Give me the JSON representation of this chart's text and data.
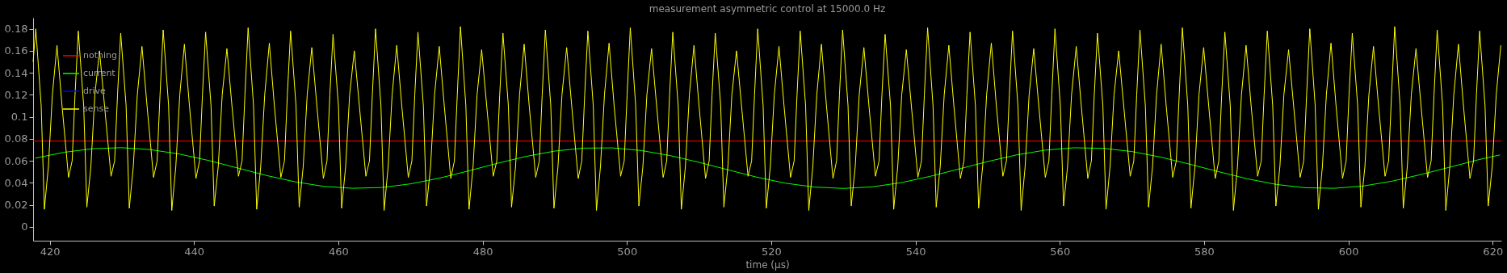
{
  "chart_data": {
    "type": "line",
    "title": "measurement asymmetric control at 15000.0 Hz",
    "xlabel": "time (µs)",
    "xlim": [
      417.7,
      621.2
    ],
    "ylim": [
      -0.0125,
      0.19
    ],
    "xticks": [
      420,
      440,
      460,
      480,
      500,
      520,
      540,
      560,
      580,
      600,
      620
    ],
    "yticks": [
      0,
      0.02,
      0.04,
      0.06,
      0.08,
      0.1,
      0.12,
      0.14,
      0.16,
      0.18
    ],
    "legend": "top left",
    "line_style": "solid",
    "series": [
      {
        "name": "nothing",
        "color": "#ff0000",
        "x": [
          417.7,
          621.2
        ],
        "values": [
          0.078,
          0.078
        ]
      },
      {
        "name": "current",
        "color": "#00ff00",
        "x": [
          418,
          422,
          426,
          430,
          434,
          438,
          442,
          446,
          450,
          454,
          458,
          462,
          466,
          470,
          474,
          478,
          482,
          486,
          490,
          494,
          498,
          502,
          506,
          510,
          514,
          518,
          522,
          526,
          530,
          534,
          538,
          542,
          546,
          550,
          554,
          558,
          562,
          566,
          570,
          574,
          578,
          582,
          586,
          590,
          594,
          598,
          602,
          606,
          610,
          614,
          618,
          621
        ],
        "values": [
          0.0625,
          0.0678,
          0.0711,
          0.072,
          0.0702,
          0.0662,
          0.0604,
          0.0536,
          0.0468,
          0.041,
          0.0368,
          0.0351,
          0.0358,
          0.0391,
          0.0443,
          0.0508,
          0.0577,
          0.064,
          0.0689,
          0.0716,
          0.0718,
          0.0694,
          0.0648,
          0.0587,
          0.0519,
          0.0452,
          0.0397,
          0.0362,
          0.035,
          0.0364,
          0.0402,
          0.0459,
          0.0526,
          0.0594,
          0.0654,
          0.0698,
          0.0719,
          0.0714,
          0.0685,
          0.0634,
          0.057,
          0.0502,
          0.0437,
          0.0386,
          0.0356,
          0.0351,
          0.0371,
          0.0415,
          0.0475,
          0.0542,
          0.061,
          0.0654
        ]
      },
      {
        "name": "drive",
        "color": "#0000ff"
      },
      {
        "name": "sense",
        "color": "#ffff00",
        "x": [
          417.7,
          418.07,
          418.82,
          419.26,
          419.82,
          420.37,
          421.01,
          421.71,
          422.61,
          423.11,
          423.51,
          423.96,
          424.71,
          425.15,
          425.71,
          426.26,
          426.9,
          427.6,
          428.5,
          429.0,
          429.4,
          429.84,
          430.59,
          431.03,
          431.59,
          432.14,
          432.79,
          433.49,
          434.39,
          434.89,
          435.29,
          435.73,
          436.48,
          436.92,
          437.48,
          438.03,
          438.67,
          439.37,
          440.27,
          440.77,
          441.17,
          441.61,
          442.36,
          442.8,
          443.36,
          443.91,
          444.56,
          445.26,
          446.16,
          446.66,
          447.06,
          447.5,
          448.25,
          448.69,
          449.25,
          449.8,
          450.44,
          451.14,
          452.04,
          452.54,
          452.94,
          453.39,
          454.14,
          454.58,
          455.14,
          455.69,
          456.33,
          457.03,
          457.93,
          458.43,
          458.83,
          459.27,
          460.02,
          460.46,
          461.02,
          461.57,
          462.22,
          462.92,
          463.82,
          464.32,
          464.72,
          465.16,
          465.91,
          466.35,
          466.91,
          467.46,
          468.1,
          468.8,
          469.7,
          470.2,
          470.6,
          471.04,
          471.79,
          472.23,
          472.79,
          473.34,
          473.99,
          474.69,
          475.59,
          476.09,
          476.49,
          476.93,
          477.68,
          478.12,
          478.68,
          479.23,
          479.87,
          480.57,
          481.47,
          481.97,
          482.37,
          482.82,
          483.57,
          484.01,
          484.57,
          485.12,
          485.76,
          486.46,
          487.36,
          487.86,
          488.26,
          488.7,
          489.45,
          489.89,
          490.45,
          491.0,
          491.65,
          492.35,
          493.25,
          493.75,
          494.15,
          494.59,
          495.34,
          495.78,
          496.34,
          496.89,
          497.53,
          498.23,
          499.13,
          499.63,
          500.03,
          500.47,
          501.22,
          501.66,
          502.22,
          502.77,
          503.42,
          504.12,
          505.02,
          505.52,
          505.92,
          506.36,
          507.11,
          507.55,
          508.11,
          508.66,
          509.3,
          510.0,
          510.9,
          511.4,
          511.8,
          512.25,
          513.0,
          513.44,
          514.0,
          514.55,
          515.19,
          515.89,
          516.79,
          517.29,
          517.69,
          518.13,
          518.88,
          519.32,
          519.88,
          520.43,
          521.08,
          521.78,
          522.68,
          523.18,
          523.58,
          524.02,
          524.77,
          525.21,
          525.77,
          526.32,
          526.96,
          527.66,
          528.56,
          529.06,
          529.46,
          529.9,
          530.65,
          531.09,
          531.65,
          532.2,
          532.85,
          533.55,
          534.45,
          534.95,
          535.35,
          535.79,
          536.54,
          536.98,
          537.54,
          538.09,
          538.73,
          539.43,
          540.33,
          540.83,
          541.23,
          541.68,
          542.43,
          542.87,
          543.43,
          543.98,
          544.62,
          545.32,
          546.22,
          546.72,
          547.12,
          547.56,
          548.31,
          548.75,
          549.31,
          549.86,
          550.51,
          551.21,
          552.11,
          552.61,
          553.01,
          553.45,
          554.2,
          554.64,
          555.2,
          555.75,
          556.39,
          557.09,
          557.99,
          558.49,
          558.89,
          559.33,
          560.08,
          560.52,
          561.08,
          561.63,
          562.28,
          562.98,
          563.88,
          564.38,
          564.78,
          565.22,
          565.97,
          566.41,
          566.97,
          567.52,
          568.16,
          568.86,
          569.76,
          570.26,
          570.66,
          571.11,
          571.86,
          572.3,
          572.86,
          573.41,
          574.05,
          574.75,
          575.65,
          576.15,
          576.55,
          576.99,
          577.74,
          578.18,
          578.74,
          579.29,
          579.94,
          580.64,
          581.54,
          582.04,
          582.44,
          582.88,
          583.63,
          584.07,
          584.63,
          585.18,
          585.82,
          586.52,
          587.42,
          587.92,
          588.32,
          588.76,
          589.51,
          589.95,
          590.51,
          591.06,
          591.71,
          592.41,
          593.31,
          593.81,
          594.21,
          594.65,
          595.4,
          595.84,
          596.4,
          596.95,
          597.59,
          598.29,
          599.19,
          599.69,
          600.09,
          600.54,
          601.29,
          601.73,
          602.29,
          602.84,
          603.48,
          604.18,
          605.08,
          605.58,
          605.98,
          606.42,
          607.17,
          607.61,
          608.17,
          608.72,
          609.37,
          610.07,
          610.97,
          611.47,
          611.87,
          612.31,
          613.06,
          613.5,
          614.06,
          614.61,
          615.25,
          615.95,
          616.85,
          617.35,
          617.75,
          618.19,
          618.94,
          619.38,
          619.94,
          620.49,
          621.13
        ],
        "values": [
          0.15,
          0.18,
          0.11,
          0.016,
          0.055,
          0.12,
          0.165,
          0.11,
          0.045,
          0.06,
          0.12,
          0.178,
          0.11,
          0.018,
          0.055,
          0.12,
          0.16,
          0.11,
          0.046,
          0.06,
          0.12,
          0.176,
          0.11,
          0.017,
          0.055,
          0.12,
          0.164,
          0.11,
          0.045,
          0.06,
          0.12,
          0.179,
          0.11,
          0.015,
          0.055,
          0.12,
          0.166,
          0.11,
          0.044,
          0.06,
          0.12,
          0.177,
          0.11,
          0.019,
          0.055,
          0.12,
          0.162,
          0.11,
          0.046,
          0.06,
          0.12,
          0.181,
          0.11,
          0.016,
          0.055,
          0.12,
          0.167,
          0.11,
          0.045,
          0.06,
          0.12,
          0.178,
          0.11,
          0.018,
          0.055,
          0.12,
          0.163,
          0.11,
          0.044,
          0.06,
          0.12,
          0.175,
          0.11,
          0.017,
          0.055,
          0.12,
          0.16,
          0.11,
          0.046,
          0.06,
          0.12,
          0.18,
          0.11,
          0.015,
          0.055,
          0.12,
          0.165,
          0.11,
          0.045,
          0.06,
          0.12,
          0.177,
          0.11,
          0.019,
          0.055,
          0.12,
          0.164,
          0.11,
          0.044,
          0.06,
          0.12,
          0.182,
          0.11,
          0.016,
          0.055,
          0.12,
          0.161,
          0.11,
          0.046,
          0.06,
          0.12,
          0.176,
          0.11,
          0.018,
          0.055,
          0.12,
          0.166,
          0.11,
          0.045,
          0.06,
          0.12,
          0.179,
          0.11,
          0.017,
          0.055,
          0.12,
          0.163,
          0.11,
          0.044,
          0.06,
          0.12,
          0.178,
          0.11,
          0.015,
          0.055,
          0.12,
          0.167,
          0.11,
          0.046,
          0.06,
          0.12,
          0.181,
          0.11,
          0.019,
          0.055,
          0.12,
          0.162,
          0.11,
          0.045,
          0.06,
          0.12,
          0.177,
          0.11,
          0.016,
          0.055,
          0.12,
          0.165,
          0.11,
          0.044,
          0.06,
          0.12,
          0.176,
          0.11,
          0.018,
          0.055,
          0.12,
          0.16,
          0.11,
          0.046,
          0.06,
          0.12,
          0.18,
          0.11,
          0.017,
          0.055,
          0.12,
          0.164,
          0.11,
          0.045,
          0.06,
          0.12,
          0.178,
          0.11,
          0.015,
          0.055,
          0.12,
          0.166,
          0.11,
          0.044,
          0.06,
          0.12,
          0.179,
          0.11,
          0.019,
          0.055,
          0.12,
          0.163,
          0.11,
          0.046,
          0.06,
          0.12,
          0.175,
          0.11,
          0.016,
          0.055,
          0.12,
          0.161,
          0.11,
          0.045,
          0.06,
          0.12,
          0.181,
          0.11,
          0.018,
          0.055,
          0.12,
          0.165,
          0.11,
          0.044,
          0.06,
          0.12,
          0.177,
          0.11,
          0.017,
          0.055,
          0.12,
          0.167,
          0.11,
          0.046,
          0.06,
          0.12,
          0.178,
          0.11,
          0.015,
          0.055,
          0.12,
          0.162,
          0.11,
          0.045,
          0.06,
          0.12,
          0.18,
          0.11,
          0.019,
          0.055,
          0.12,
          0.164,
          0.11,
          0.044,
          0.06,
          0.12,
          0.176,
          0.11,
          0.016,
          0.055,
          0.12,
          0.16,
          0.11,
          0.046,
          0.06,
          0.12,
          0.179,
          0.11,
          0.018,
          0.055,
          0.12,
          0.166,
          0.11,
          0.045,
          0.06,
          0.12,
          0.181,
          0.11,
          0.017,
          0.055,
          0.12,
          0.163,
          0.11,
          0.044,
          0.06,
          0.12,
          0.177,
          0.11,
          0.015,
          0.055,
          0.12,
          0.165,
          0.11,
          0.046,
          0.06,
          0.12,
          0.178,
          0.11,
          0.019,
          0.055,
          0.12,
          0.161,
          0.11,
          0.045,
          0.06,
          0.12,
          0.18,
          0.11,
          0.016,
          0.055,
          0.12,
          0.167,
          0.11,
          0.044,
          0.06,
          0.12,
          0.176,
          0.11,
          0.018,
          0.055,
          0.12,
          0.164,
          0.11,
          0.046,
          0.06,
          0.12,
          0.182,
          0.11,
          0.017,
          0.055,
          0.12,
          0.162,
          0.11,
          0.045,
          0.06,
          0.12,
          0.179,
          0.11,
          0.015,
          0.055,
          0.12,
          0.166,
          0.11,
          0.044,
          0.06,
          0.12,
          0.178,
          0.11,
          0.019,
          0.055,
          0.12,
          0.165
        ]
      }
    ]
  }
}
